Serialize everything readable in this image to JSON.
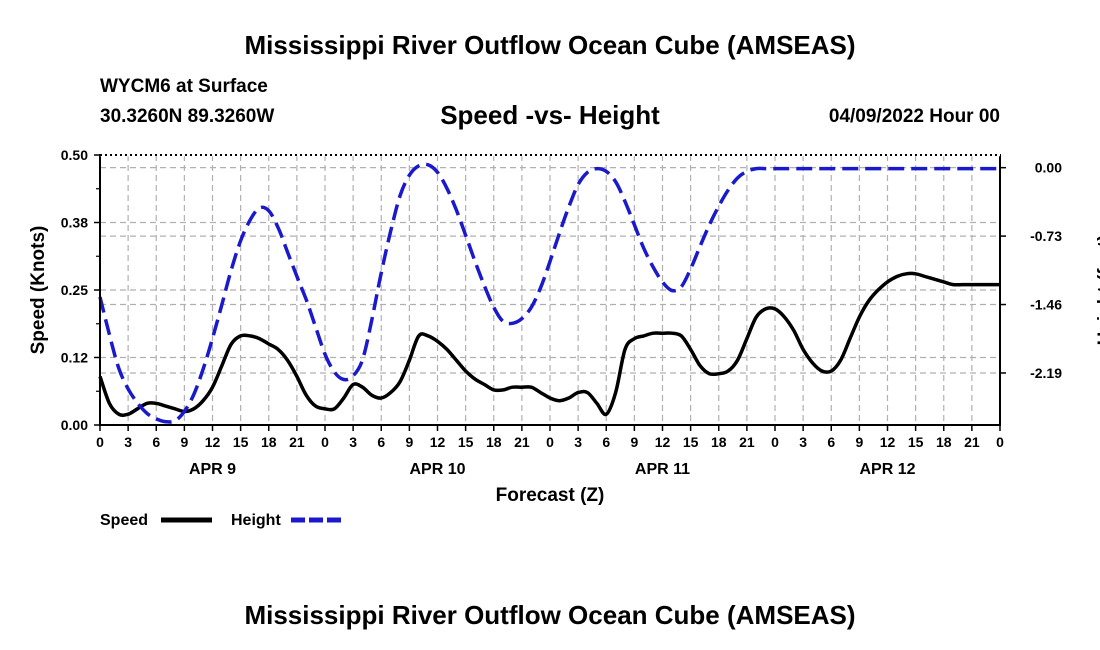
{
  "header": {
    "title": "Mississippi River Outflow Ocean Cube (AMSEAS)",
    "station": "WYCM6 at Surface",
    "coords": "30.3260N  89.3260W",
    "subtitle": "Speed -vs- Height",
    "datestamp": "04/09/2022 Hour 00"
  },
  "footer": {
    "title": "Mississippi River Outflow Ocean Cube (AMSEAS)"
  },
  "legend": {
    "speed_label": "Speed",
    "height_label": "Height"
  },
  "colors": {
    "speed": "#000000",
    "height": "#1a1acc",
    "grid": "#b0b0b0"
  },
  "chart_data": {
    "type": "line",
    "xlabel": "Forecast (Z)",
    "ylabel_left": "Speed (Knots)",
    "ylabel_right": "Height (feet)",
    "x_range": [
      0,
      96
    ],
    "ylim_left": [
      0,
      0.5
    ],
    "ylim_right": [
      -2.745,
      0.135
    ],
    "left_ticks": [
      {
        "value": 0.0,
        "label": "0.00"
      },
      {
        "value": 0.125,
        "label": "0.12"
      },
      {
        "value": 0.25,
        "label": "0.25"
      },
      {
        "value": 0.375,
        "label": "0.38"
      },
      {
        "value": 0.5,
        "label": "0.50"
      }
    ],
    "right_ticks": [
      {
        "value": 0.0,
        "label": "0.00"
      },
      {
        "value": -0.73,
        "label": "-0.73"
      },
      {
        "value": -1.46,
        "label": "-1.46"
      },
      {
        "value": -2.19,
        "label": "-2.19"
      }
    ],
    "x_ticks": [
      "0",
      "3",
      "6",
      "9",
      "12",
      "15",
      "18",
      "21",
      "0",
      "3",
      "6",
      "9",
      "12",
      "15",
      "18",
      "21",
      "0",
      "3",
      "6",
      "9",
      "12",
      "15",
      "18",
      "21",
      "0",
      "3",
      "6",
      "9",
      "12",
      "15",
      "18",
      "21",
      "0"
    ],
    "day_labels": [
      {
        "hour": 12,
        "label": "APR 9"
      },
      {
        "hour": 36,
        "label": "APR 10"
      },
      {
        "hour": 60,
        "label": "APR 11"
      },
      {
        "hour": 84,
        "label": "APR 12"
      }
    ],
    "grid": true,
    "series": [
      {
        "name": "Speed",
        "axis": "left",
        "style": "solid",
        "x": [
          0,
          1,
          2,
          3,
          4,
          5,
          6,
          7,
          8,
          9,
          10,
          11,
          12,
          13,
          14,
          15,
          16,
          17,
          18,
          19,
          20,
          21,
          22,
          23,
          24,
          25,
          26,
          27,
          28,
          29,
          30,
          31,
          32,
          33,
          34,
          35,
          36,
          37,
          38,
          39,
          40,
          41,
          42,
          43,
          44,
          45,
          46,
          47,
          48,
          49,
          50,
          51,
          52,
          53,
          54,
          55,
          56,
          57,
          58,
          59,
          60,
          61,
          62,
          63,
          64,
          65,
          66,
          67,
          68,
          69,
          70,
          71,
          72,
          73,
          74,
          75,
          76,
          77,
          78,
          79,
          80,
          81,
          82,
          83,
          84,
          85,
          86,
          87,
          88,
          89,
          90,
          91,
          92,
          93,
          94,
          95,
          96
        ],
        "values": [
          0.09,
          0.04,
          0.02,
          0.02,
          0.03,
          0.04,
          0.04,
          0.035,
          0.03,
          0.025,
          0.03,
          0.045,
          0.07,
          0.11,
          0.15,
          0.165,
          0.165,
          0.16,
          0.15,
          0.14,
          0.12,
          0.09,
          0.055,
          0.035,
          0.03,
          0.03,
          0.05,
          0.075,
          0.07,
          0.055,
          0.05,
          0.06,
          0.08,
          0.12,
          0.165,
          0.165,
          0.155,
          0.14,
          0.12,
          0.1,
          0.085,
          0.075,
          0.065,
          0.065,
          0.07,
          0.07,
          0.07,
          0.06,
          0.05,
          0.045,
          0.05,
          0.06,
          0.06,
          0.04,
          0.02,
          0.06,
          0.14,
          0.16,
          0.165,
          0.17,
          0.17,
          0.17,
          0.165,
          0.14,
          0.11,
          0.095,
          0.095,
          0.1,
          0.12,
          0.16,
          0.2,
          0.215,
          0.215,
          0.2,
          0.175,
          0.14,
          0.115,
          0.1,
          0.1,
          0.12,
          0.16,
          0.2,
          0.23,
          0.25,
          0.265,
          0.275,
          0.28,
          0.28,
          0.275,
          0.27,
          0.265,
          0.26,
          0.26,
          0.26,
          0.26,
          0.26,
          0.26
        ]
      },
      {
        "name": "Height",
        "axis": "right",
        "style": "dashed",
        "x": [
          0,
          1,
          2,
          3,
          4,
          5,
          6,
          7,
          8,
          9,
          10,
          11,
          12,
          13,
          14,
          15,
          16,
          17,
          18,
          19,
          20,
          21,
          22,
          23,
          24,
          25,
          26,
          27,
          28,
          29,
          30,
          31,
          32,
          33,
          34,
          35,
          36,
          37,
          38,
          39,
          40,
          41,
          42,
          43,
          44,
          45,
          46,
          47,
          48,
          49,
          50,
          51,
          52,
          53,
          54,
          55,
          56,
          57,
          58,
          59,
          60,
          61,
          62,
          63,
          64,
          65,
          66,
          67,
          68,
          69,
          70,
          71,
          72,
          73,
          74,
          75,
          76,
          77,
          78,
          79,
          80,
          81,
          82,
          83,
          84,
          85,
          86,
          87,
          88,
          89,
          90,
          91,
          92,
          93,
          94,
          95,
          96
        ],
        "values": [
          -1.38,
          -1.78,
          -2.14,
          -2.36,
          -2.51,
          -2.62,
          -2.68,
          -2.71,
          -2.7,
          -2.6,
          -2.42,
          -2.15,
          -1.82,
          -1.46,
          -1.09,
          -0.78,
          -0.56,
          -0.43,
          -0.46,
          -0.64,
          -0.9,
          -1.16,
          -1.41,
          -1.7,
          -1.99,
          -2.18,
          -2.26,
          -2.22,
          -2.05,
          -1.62,
          -1.12,
          -0.68,
          -0.3,
          -0.08,
          0.02,
          0.03,
          -0.05,
          -0.22,
          -0.45,
          -0.72,
          -1.0,
          -1.26,
          -1.49,
          -1.64,
          -1.66,
          -1.61,
          -1.49,
          -1.28,
          -1.0,
          -0.7,
          -0.42,
          -0.18,
          -0.05,
          -0.01,
          -0.04,
          -0.15,
          -0.36,
          -0.61,
          -0.86,
          -1.06,
          -1.22,
          -1.31,
          -1.27,
          -1.08,
          -0.84,
          -0.61,
          -0.41,
          -0.24,
          -0.11,
          -0.04,
          -0.01,
          -0.01,
          -0.01,
          -0.01,
          -0.01,
          -0.01,
          -0.01,
          -0.01,
          -0.01,
          -0.01,
          -0.01,
          -0.01,
          -0.01,
          -0.01,
          -0.01,
          -0.01,
          -0.01,
          -0.01,
          -0.01,
          -0.01,
          -0.01,
          -0.01,
          -0.01,
          -0.01,
          -0.01,
          -0.01,
          -0.01
        ]
      }
    ]
  }
}
